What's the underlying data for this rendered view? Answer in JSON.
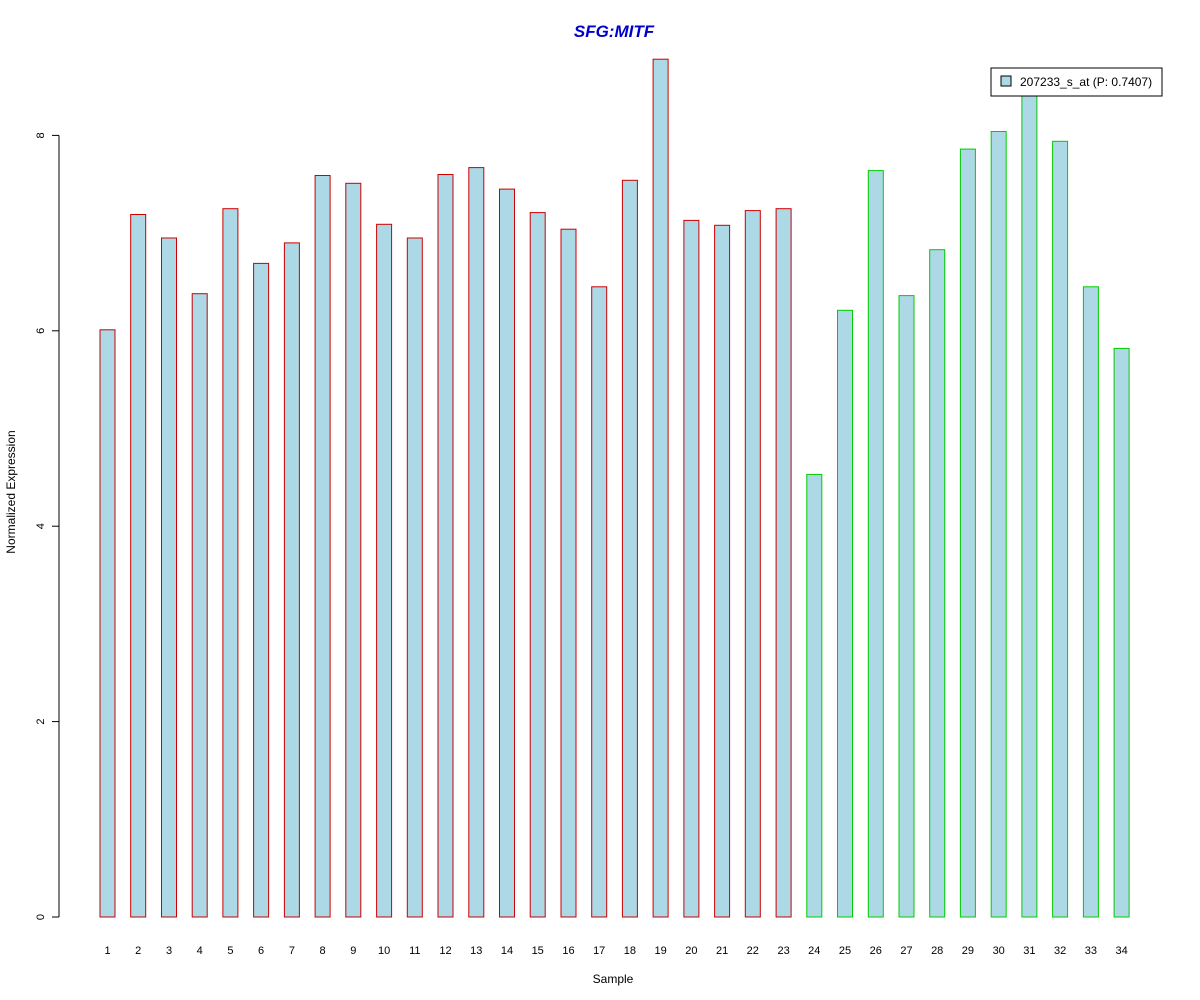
{
  "chart_data": {
    "type": "bar",
    "title": "SFG:MITF",
    "xlabel": "Sample",
    "ylabel": "Normalized Expression",
    "categories": [
      "1",
      "2",
      "3",
      "4",
      "5",
      "6",
      "7",
      "8",
      "9",
      "10",
      "11",
      "12",
      "13",
      "14",
      "15",
      "16",
      "17",
      "18",
      "19",
      "20",
      "21",
      "22",
      "23",
      "24",
      "25",
      "26",
      "27",
      "28",
      "29",
      "30",
      "31",
      "32",
      "33",
      "34"
    ],
    "values": [
      6.01,
      7.19,
      6.95,
      6.38,
      7.25,
      6.69,
      6.9,
      7.59,
      7.51,
      7.09,
      6.95,
      7.6,
      7.67,
      7.45,
      7.21,
      7.04,
      6.45,
      7.54,
      8.78,
      7.13,
      7.08,
      7.23,
      7.25,
      4.53,
      6.21,
      7.64,
      6.36,
      6.83,
      7.86,
      8.04,
      8.41,
      7.94,
      6.45,
      5.82
    ],
    "border_colors": [
      "#cc0000",
      "#cc0000",
      "#cc0000",
      "#cc0000",
      "#cc0000",
      "#cc0000",
      "#cc0000",
      "#cc0000",
      "#cc0000",
      "#cc0000",
      "#cc0000",
      "#cc0000",
      "#cc0000",
      "#cc0000",
      "#cc0000",
      "#cc0000",
      "#cc0000",
      "#cc0000",
      "#cc0000",
      "#cc0000",
      "#cc0000",
      "#cc0000",
      "#cc0000",
      "#00cc00",
      "#00cc00",
      "#00cc00",
      "#00cc00",
      "#00cc00",
      "#00cc00",
      "#00cc00",
      "#00cc00",
      "#00cc00",
      "#00cc00",
      "#00cc00"
    ],
    "y_ticks": [
      0,
      2,
      4,
      6,
      8
    ],
    "ylim": [
      0,
      8.78
    ],
    "grid": false,
    "legend": {
      "label": "207233_s_at (P: 0.7407)",
      "position": "top-right"
    },
    "colors": {
      "bar_fill": "#add8e6",
      "title": "#0000cc",
      "group1_border": "#cc0000",
      "group2_border": "#00cc00"
    }
  }
}
